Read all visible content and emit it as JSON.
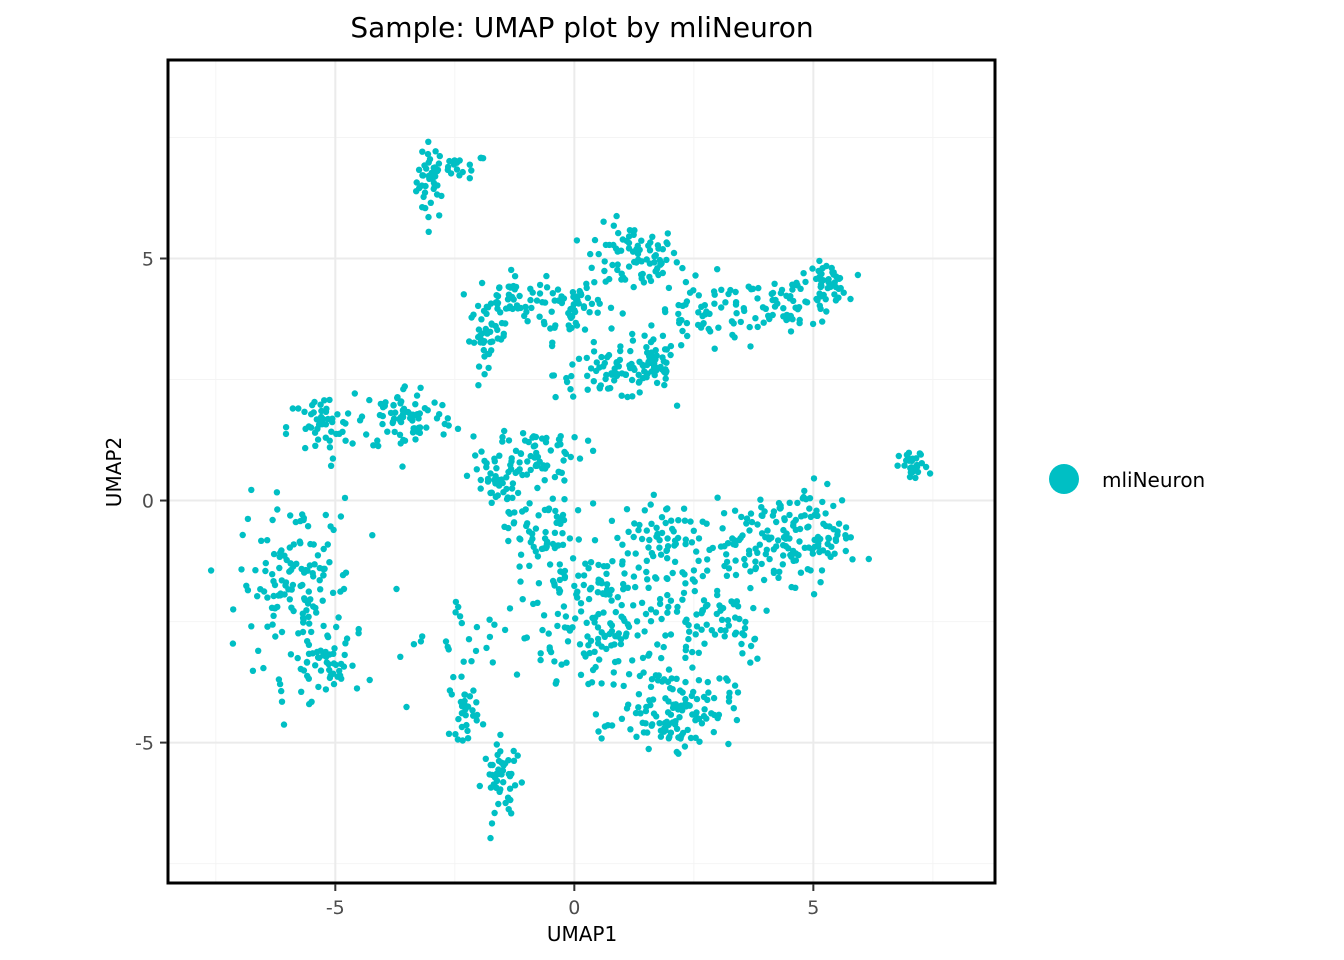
{
  "chart_data": {
    "type": "scatter",
    "title": "Sample: UMAP plot by mliNeuron",
    "xlabel": "UMAP1",
    "ylabel": "UMAP2",
    "xlim": [
      -8.5,
      8.8
    ],
    "ylim": [
      -7.9,
      9.1
    ],
    "x_ticks": [
      -5,
      0,
      5
    ],
    "x_tick_labels": [
      "-5",
      "0",
      "5"
    ],
    "y_ticks": [
      -5,
      0,
      5
    ],
    "y_tick_labels": [
      "-5",
      "0",
      "5"
    ],
    "grid": true,
    "legend_position": "right",
    "series": [
      {
        "name": "mliNeuron",
        "color": "#00BFC4",
        "clusters": [
          {
            "cx": -3.0,
            "cy": 6.6,
            "sx": 0.15,
            "sy": 0.4,
            "n": 40
          },
          {
            "cx": -2.4,
            "cy": 6.9,
            "sx": 0.3,
            "sy": 0.12,
            "n": 20
          },
          {
            "cx": 1.2,
            "cy": 5.0,
            "sx": 0.5,
            "sy": 0.35,
            "n": 80
          },
          {
            "cx": 0.0,
            "cy": 4.0,
            "sx": 0.45,
            "sy": 0.35,
            "n": 60
          },
          {
            "cx": -1.3,
            "cy": 4.2,
            "sx": 0.35,
            "sy": 0.25,
            "n": 50
          },
          {
            "cx": -1.8,
            "cy": 3.4,
            "sx": 0.2,
            "sy": 0.3,
            "n": 40
          },
          {
            "cx": 0.8,
            "cy": 2.6,
            "sx": 0.6,
            "sy": 0.25,
            "n": 70
          },
          {
            "cx": 1.7,
            "cy": 2.8,
            "sx": 0.2,
            "sy": 0.25,
            "n": 40
          },
          {
            "cx": 2.8,
            "cy": 3.8,
            "sx": 0.6,
            "sy": 0.4,
            "n": 60
          },
          {
            "cx": 4.5,
            "cy": 4.1,
            "sx": 0.5,
            "sy": 0.25,
            "n": 60
          },
          {
            "cx": 5.3,
            "cy": 4.5,
            "sx": 0.2,
            "sy": 0.2,
            "n": 40
          },
          {
            "cx": -5.3,
            "cy": 1.5,
            "sx": 0.35,
            "sy": 0.35,
            "n": 50
          },
          {
            "cx": -3.5,
            "cy": 1.7,
            "sx": 0.5,
            "sy": 0.35,
            "n": 80
          },
          {
            "cx": -0.8,
            "cy": 1.0,
            "sx": 0.5,
            "sy": 0.3,
            "n": 60
          },
          {
            "cx": -1.7,
            "cy": 0.4,
            "sx": 0.3,
            "sy": 0.35,
            "n": 40
          },
          {
            "cx": -0.7,
            "cy": -0.8,
            "sx": 0.35,
            "sy": 0.6,
            "n": 70
          },
          {
            "cx": 7.1,
            "cy": 0.7,
            "sx": 0.15,
            "sy": 0.15,
            "n": 30
          },
          {
            "cx": -5.8,
            "cy": -1.8,
            "sx": 0.6,
            "sy": 0.9,
            "n": 150
          },
          {
            "cx": -5.0,
            "cy": -3.5,
            "sx": 0.4,
            "sy": 0.25,
            "n": 40
          },
          {
            "cx": -2.3,
            "cy": -4.3,
            "sx": 0.15,
            "sy": 0.3,
            "n": 30
          },
          {
            "cx": -1.5,
            "cy": -5.8,
            "sx": 0.2,
            "sy": 0.4,
            "n": 50
          },
          {
            "cx": 0.8,
            "cy": -2.5,
            "sx": 1.0,
            "sy": 0.9,
            "n": 200
          },
          {
            "cx": 2.1,
            "cy": -4.3,
            "sx": 0.6,
            "sy": 0.4,
            "n": 120
          },
          {
            "cx": 1.5,
            "cy": -0.8,
            "sx": 0.6,
            "sy": 0.3,
            "n": 50
          },
          {
            "cx": 3.8,
            "cy": -1.0,
            "sx": 0.9,
            "sy": 0.5,
            "n": 100
          },
          {
            "cx": 4.8,
            "cy": -0.6,
            "sx": 0.5,
            "sy": 0.5,
            "n": 80
          },
          {
            "cx": 3.0,
            "cy": -2.4,
            "sx": 0.6,
            "sy": 0.5,
            "n": 50
          },
          {
            "cx": -2.2,
            "cy": -3.0,
            "sx": 0.8,
            "sy": 0.6,
            "n": 25
          }
        ]
      }
    ]
  }
}
